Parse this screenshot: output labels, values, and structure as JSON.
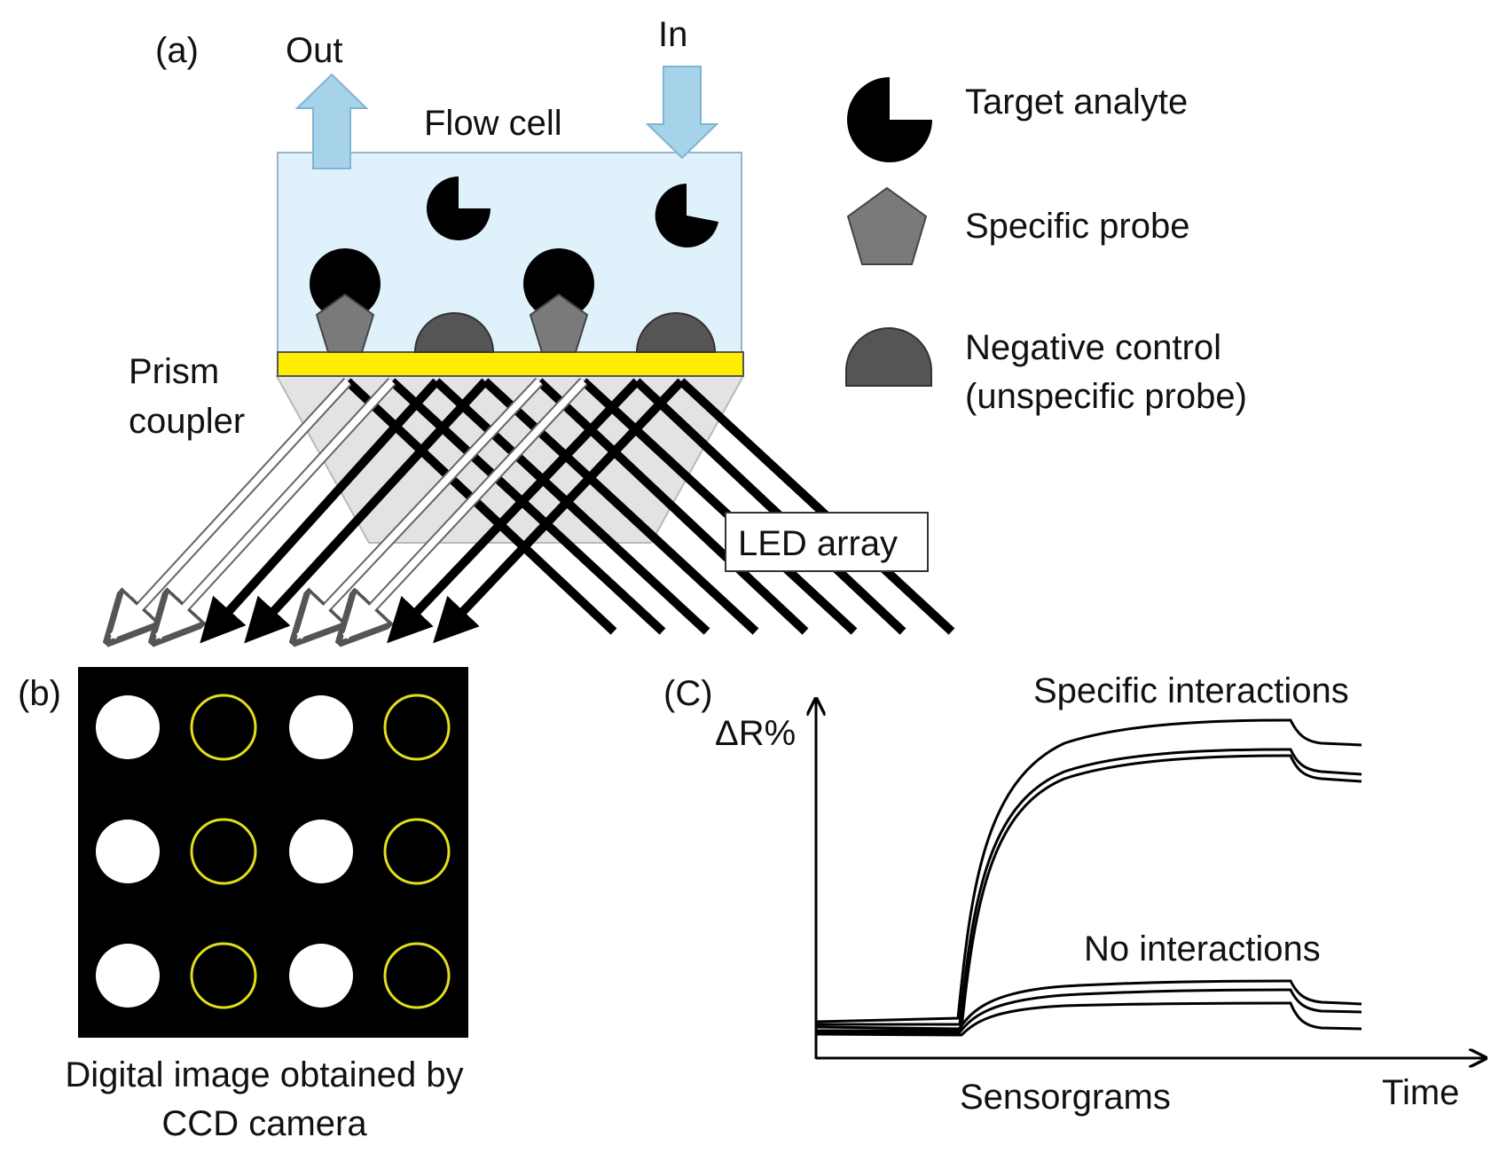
{
  "panel_a": {
    "label": "(a)",
    "out_label": "Out",
    "in_label": "In",
    "flow_cell_label": "Flow cell",
    "prism_label_line1": "Prism",
    "prism_label_line2": "coupler",
    "led_label": "LED array",
    "colors": {
      "flow_cell": "#dff1fa",
      "flow_arrow": "#a7d3ea",
      "gold_film": "#ffee00",
      "prism": "#e3e3e3",
      "analyte": "#000000",
      "specific_probe": "#7a7a7a",
      "negative_control": "#555555"
    }
  },
  "legend": {
    "items": [
      {
        "icon": "target-analyte-icon",
        "line1": "Target analyte",
        "line2": ""
      },
      {
        "icon": "specific-probe-icon",
        "line1": "Specific probe",
        "line2": ""
      },
      {
        "icon": "negative-control-icon",
        "line1": "Negative control",
        "line2": "(unspecific probe)"
      }
    ]
  },
  "panel_b": {
    "label": "(b)",
    "caption_line1": "Digital image obtained by",
    "caption_line2": "CCD camera",
    "spot_grid": [
      [
        "filled",
        "ring",
        "filled",
        "ring"
      ],
      [
        "filled",
        "ring",
        "filled",
        "ring"
      ],
      [
        "filled",
        "ring",
        "filled",
        "ring"
      ]
    ],
    "colors": {
      "background": "#000000",
      "filled_spot": "#ffffff",
      "ring_spot": "#e3dd1e"
    }
  },
  "panel_c": {
    "label": "(C)",
    "y_axis_label": "ΔR%",
    "x_axis_label": "Time",
    "caption": "Sensorgrams",
    "upper_group_label": "Specific interactions",
    "lower_group_label": "No interactions"
  }
}
